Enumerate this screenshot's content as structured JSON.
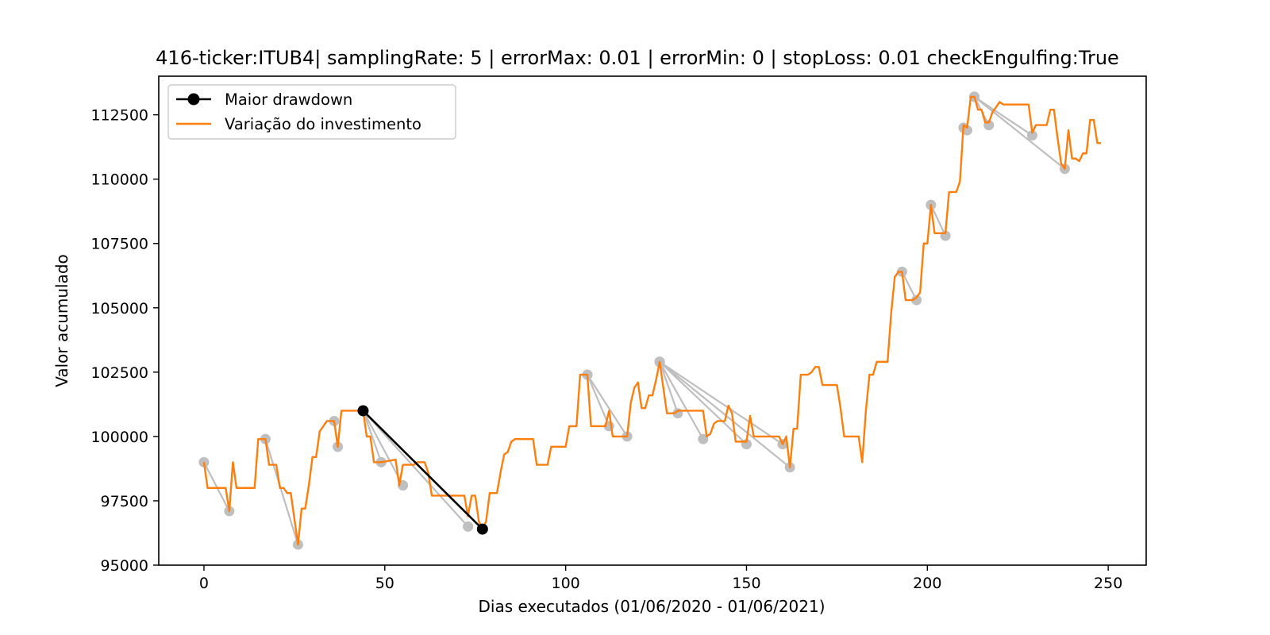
{
  "chart_data": {
    "type": "line",
    "title": "416-ticker:ITUB4| samplingRate: 5 | errorMax: 0.01 | errorMin: 0 | stopLoss: 0.01 checkEngulfing:True",
    "xlabel": "Dias executados (01/06/2020 - 01/06/2021)",
    "ylabel": "Valor acumulado",
    "xlim": [
      -12.5,
      260.5
    ],
    "ylim": [
      95000,
      114000
    ],
    "x_ticks": [
      0,
      50,
      100,
      150,
      200,
      250
    ],
    "x_tick_labels": [
      "0",
      "50",
      "100",
      "150",
      "200",
      "250"
    ],
    "y_ticks": [
      95000,
      97500,
      100000,
      102500,
      105000,
      107500,
      110000,
      112500
    ],
    "y_tick_labels": [
      "95000",
      "97500",
      "100000",
      "102500",
      "105000",
      "107500",
      "110000",
      "112500"
    ],
    "grid": false,
    "legend_position": "upper-left",
    "legend": [
      {
        "label": "Maior drawdown",
        "color": "#000000",
        "marker": "circle"
      },
      {
        "label": "Variação do investimento",
        "color": "#ff7f0e",
        "marker": "none"
      }
    ],
    "series": [
      {
        "name": "Variação do investimento",
        "color": "#ff7f0e",
        "points": [
          [
            0,
            99000
          ],
          [
            1,
            98000
          ],
          [
            2,
            98000
          ],
          [
            6,
            98000
          ],
          [
            7,
            97100
          ],
          [
            8,
            99000
          ],
          [
            9,
            98000
          ],
          [
            14,
            98000
          ],
          [
            15,
            99900
          ],
          [
            17,
            99900
          ],
          [
            18,
            98900
          ],
          [
            20,
            98900
          ],
          [
            21,
            98000
          ],
          [
            22,
            98000
          ],
          [
            23,
            97800
          ],
          [
            24,
            97800
          ],
          [
            26,
            95800
          ],
          [
            27,
            97200
          ],
          [
            28,
            97200
          ],
          [
            29,
            98100
          ],
          [
            30,
            99200
          ],
          [
            31,
            99200
          ],
          [
            32,
            100200
          ],
          [
            34,
            100600
          ],
          [
            36,
            100600
          ],
          [
            37,
            99600
          ],
          [
            38,
            101000
          ],
          [
            43,
            101000
          ],
          [
            44,
            101000
          ],
          [
            45,
            100000
          ],
          [
            46,
            100000
          ],
          [
            47,
            99000
          ],
          [
            48,
            99000
          ],
          [
            49,
            99000
          ],
          [
            53,
            99100
          ],
          [
            54,
            98100
          ],
          [
            55,
            98900
          ],
          [
            58,
            98900
          ],
          [
            59,
            99000
          ],
          [
            61,
            99000
          ],
          [
            62,
            98600
          ],
          [
            63,
            97700
          ],
          [
            66,
            97700
          ],
          [
            72,
            97700
          ],
          [
            73,
            96900
          ],
          [
            74,
            97700
          ],
          [
            75,
            97700
          ],
          [
            76,
            96700
          ],
          [
            77,
            96400
          ],
          [
            78,
            96700
          ],
          [
            79,
            97800
          ],
          [
            81,
            97800
          ],
          [
            82,
            98600
          ],
          [
            83,
            99300
          ],
          [
            84,
            99400
          ],
          [
            85,
            99800
          ],
          [
            86,
            99900
          ],
          [
            91,
            99900
          ],
          [
            92,
            98900
          ],
          [
            95,
            98900
          ],
          [
            96,
            99600
          ],
          [
            100,
            99600
          ],
          [
            101,
            100400
          ],
          [
            103,
            100400
          ],
          [
            104,
            102400
          ],
          [
            106,
            102400
          ],
          [
            107,
            100400
          ],
          [
            111,
            100400
          ],
          [
            112,
            101000
          ],
          [
            113,
            100000
          ],
          [
            116,
            100000
          ],
          [
            117,
            100000
          ],
          [
            118,
            101300
          ],
          [
            119,
            101900
          ],
          [
            120,
            102100
          ],
          [
            121,
            101100
          ],
          [
            122,
            101100
          ],
          [
            123,
            101600
          ],
          [
            124,
            101600
          ],
          [
            125,
            102200
          ],
          [
            126,
            102900
          ],
          [
            128,
            100900
          ],
          [
            129,
            100900
          ],
          [
            130,
            100900
          ],
          [
            131,
            101000
          ],
          [
            138,
            101000
          ],
          [
            139,
            100000
          ],
          [
            140,
            100100
          ],
          [
            141,
            100500
          ],
          [
            142,
            100600
          ],
          [
            144,
            100600
          ],
          [
            145,
            101200
          ],
          [
            146,
            100900
          ],
          [
            147,
            99800
          ],
          [
            150,
            99800
          ],
          [
            151,
            100800
          ],
          [
            152,
            100000
          ],
          [
            159,
            100000
          ],
          [
            160,
            99700
          ],
          [
            161,
            100000
          ],
          [
            162,
            98800
          ],
          [
            163,
            100300
          ],
          [
            164,
            100300
          ],
          [
            165,
            102400
          ],
          [
            167,
            102400
          ],
          [
            168,
            102500
          ],
          [
            169,
            102700
          ],
          [
            170,
            102700
          ],
          [
            171,
            102000
          ],
          [
            175,
            102000
          ],
          [
            176,
            101100
          ],
          [
            177,
            100000
          ],
          [
            181,
            100000
          ],
          [
            182,
            99000
          ],
          [
            183,
            101000
          ],
          [
            184,
            102400
          ],
          [
            185,
            102400
          ],
          [
            186,
            102900
          ],
          [
            189,
            102900
          ],
          [
            190,
            104800
          ],
          [
            191,
            106200
          ],
          [
            192,
            106400
          ],
          [
            193,
            106400
          ],
          [
            194,
            105300
          ],
          [
            196,
            105300
          ],
          [
            197,
            105400
          ],
          [
            198,
            105600
          ],
          [
            199,
            107500
          ],
          [
            200,
            107500
          ],
          [
            201,
            109000
          ],
          [
            202,
            107900
          ],
          [
            203,
            107900
          ],
          [
            204,
            107900
          ],
          [
            205,
            107900
          ],
          [
            206,
            109500
          ],
          [
            208,
            109500
          ],
          [
            209,
            109900
          ],
          [
            210,
            112100
          ],
          [
            211,
            112000
          ],
          [
            212,
            113200
          ],
          [
            213,
            113200
          ],
          [
            214,
            112700
          ],
          [
            215,
            112700
          ],
          [
            216,
            112200
          ],
          [
            217,
            112200
          ],
          [
            218,
            112600
          ],
          [
            220,
            113000
          ],
          [
            221,
            112900
          ],
          [
            228,
            112900
          ],
          [
            229,
            111800
          ],
          [
            230,
            112100
          ],
          [
            233,
            112100
          ],
          [
            234,
            112700
          ],
          [
            235,
            112700
          ],
          [
            236,
            111600
          ],
          [
            237,
            110600
          ],
          [
            238,
            110400
          ],
          [
            239,
            111900
          ],
          [
            240,
            110800
          ],
          [
            241,
            110800
          ],
          [
            242,
            110700
          ],
          [
            243,
            111000
          ],
          [
            244,
            111000
          ],
          [
            245,
            112300
          ],
          [
            246,
            112300
          ],
          [
            247,
            111400
          ],
          [
            248,
            111400
          ]
        ]
      },
      {
        "name": "Maior drawdown",
        "color": "#000000",
        "points": [
          [
            44,
            101000
          ],
          [
            77,
            96400
          ]
        ]
      }
    ],
    "drawdown_segments": {
      "color": "#bfbfbf",
      "segments": [
        [
          [
            0,
            99000
          ],
          [
            7,
            97100
          ]
        ],
        [
          [
            17,
            99900
          ],
          [
            26,
            95800
          ]
        ],
        [
          [
            36,
            100600
          ],
          [
            37,
            99600
          ]
        ],
        [
          [
            44,
            101000
          ],
          [
            49,
            99000
          ]
        ],
        [
          [
            44,
            101000
          ],
          [
            55,
            98100
          ]
        ],
        [
          [
            44,
            101000
          ],
          [
            73,
            96500
          ]
        ],
        [
          [
            106,
            102400
          ],
          [
            112,
            100400
          ]
        ],
        [
          [
            106,
            102400
          ],
          [
            117,
            100000
          ]
        ],
        [
          [
            126,
            102900
          ],
          [
            131,
            100900
          ]
        ],
        [
          [
            126,
            102900
          ],
          [
            138,
            99900
          ]
        ],
        [
          [
            126,
            102900
          ],
          [
            150,
            99700
          ]
        ],
        [
          [
            126,
            102900
          ],
          [
            160,
            99700
          ]
        ],
        [
          [
            126,
            102900
          ],
          [
            162,
            98800
          ]
        ],
        [
          [
            193,
            106400
          ],
          [
            197,
            105300
          ]
        ],
        [
          [
            201,
            109000
          ],
          [
            205,
            107800
          ]
        ],
        [
          [
            210,
            112000
          ],
          [
            211,
            111900
          ]
        ],
        [
          [
            213,
            113200
          ],
          [
            217,
            112100
          ]
        ],
        [
          [
            213,
            113200
          ],
          [
            229,
            111700
          ]
        ],
        [
          [
            213,
            113200
          ],
          [
            238,
            110400
          ]
        ]
      ]
    }
  }
}
